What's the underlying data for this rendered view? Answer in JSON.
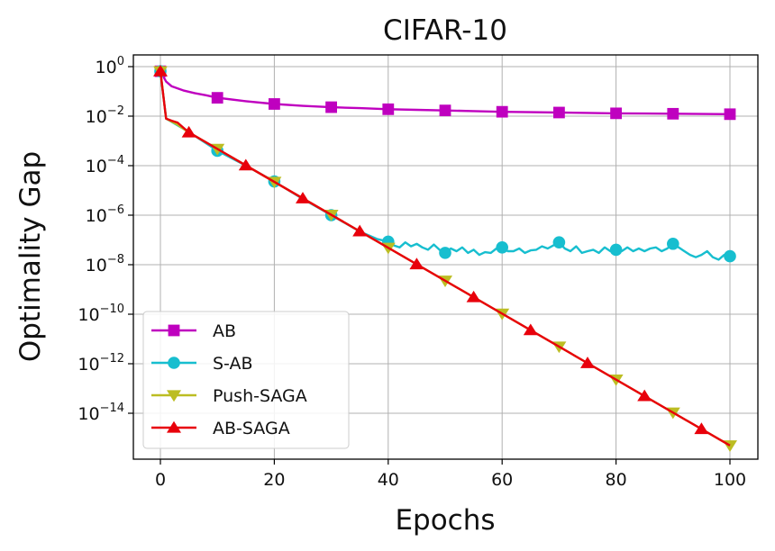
{
  "chart_data": {
    "type": "line",
    "title": "CIFAR-10",
    "xlabel": "Epochs",
    "ylabel": "Optimality Gap",
    "yscale": "log",
    "xlim": [
      -5,
      102
    ],
    "ylim": [
      1e-16,
      3
    ],
    "xticks": [
      0,
      20,
      40,
      60,
      80,
      100
    ],
    "xtick_labels": [
      "0",
      "20",
      "40",
      "60",
      "80",
      "100"
    ],
    "yticks": [
      {
        "base": "10",
        "exp": "0",
        "value": 1
      },
      {
        "base": "10",
        "exp": "−2",
        "value": 0.01
      },
      {
        "base": "10",
        "exp": "−4",
        "value": 0.0001
      },
      {
        "base": "10",
        "exp": "−6",
        "value": 1e-06
      },
      {
        "base": "10",
        "exp": "−8",
        "value": 1e-08
      },
      {
        "base": "10",
        "exp": "−10",
        "value": 1e-10
      },
      {
        "base": "10",
        "exp": "−12",
        "value": 1e-12
      },
      {
        "base": "10",
        "exp": "−14",
        "value": 1e-14
      }
    ],
    "grid": true,
    "legend_position": "bottom-left",
    "series": [
      {
        "name": "AB",
        "color": "#bf00bf",
        "marker": "square",
        "x": [
          0,
          1,
          2,
          4,
          6,
          8,
          10,
          15,
          20,
          25,
          30,
          35,
          40,
          45,
          50,
          55,
          60,
          65,
          70,
          75,
          80,
          85,
          90,
          95,
          100
        ],
        "y": [
          0.65,
          0.25,
          0.16,
          0.11,
          0.085,
          0.07,
          0.055,
          0.04,
          0.031,
          0.026,
          0.023,
          0.021,
          0.019,
          0.018,
          0.017,
          0.016,
          0.015,
          0.0145,
          0.014,
          0.0135,
          0.013,
          0.0128,
          0.0125,
          0.0122,
          0.012
        ],
        "marker_x": [
          0,
          10,
          20,
          30,
          40,
          50,
          60,
          70,
          80,
          90,
          100
        ]
      },
      {
        "name": "S-AB",
        "color": "#17becf",
        "marker": "circle",
        "x": [
          0,
          1,
          5,
          10,
          15,
          20,
          25,
          30,
          35,
          38,
          40,
          41,
          42,
          43,
          44,
          45,
          46,
          47,
          48,
          49,
          50,
          51,
          52,
          53,
          54,
          55,
          56,
          57,
          58,
          59,
          60,
          61,
          62,
          63,
          64,
          65,
          66,
          67,
          68,
          69,
          70,
          71,
          72,
          73,
          74,
          75,
          76,
          77,
          78,
          79,
          80,
          81,
          82,
          83,
          84,
          85,
          86,
          87,
          88,
          89,
          90,
          91,
          92,
          93,
          94,
          95,
          96,
          97,
          98,
          99,
          100
        ],
        "y": [
          0.65,
          0.008,
          0.0023,
          0.0004,
          0.0001,
          2.3e-05,
          4.5e-06,
          1e-06,
          2.2e-07,
          1.1e-07,
          8.5e-08,
          6e-08,
          5e-08,
          8e-08,
          5.5e-08,
          7e-08,
          5e-08,
          4e-08,
          6.5e-08,
          4e-08,
          3e-08,
          4.5e-08,
          3.5e-08,
          5e-08,
          3e-08,
          4e-08,
          2.5e-08,
          3.2e-08,
          3e-08,
          4.5e-08,
          5e-08,
          3.5e-08,
          3.5e-08,
          4.5e-08,
          3e-08,
          3.8e-08,
          4e-08,
          5.5e-08,
          4.5e-08,
          6e-08,
          8e-08,
          4.5e-08,
          3.5e-08,
          5.5e-08,
          3e-08,
          3.5e-08,
          4e-08,
          3e-08,
          5e-08,
          3.5e-08,
          4e-08,
          3.5e-08,
          5e-08,
          3.5e-08,
          4.5e-08,
          3.5e-08,
          4.5e-08,
          5e-08,
          3.5e-08,
          4.5e-08,
          7e-08,
          5e-08,
          3.5e-08,
          2.5e-08,
          2e-08,
          2.5e-08,
          3.5e-08,
          2e-08,
          1.6e-08,
          2.5e-08,
          2.2e-08
        ],
        "marker_x": [
          0,
          10,
          20,
          30,
          40,
          50,
          60,
          70,
          80,
          90,
          100
        ],
        "marker_y": [
          0.65,
          0.0004,
          2.3e-05,
          1e-06,
          8.5e-08,
          3e-08,
          5e-08,
          8e-08,
          4e-08,
          7e-08,
          2.2e-08
        ]
      },
      {
        "name": "Push-SAGA",
        "color": "#bcbd22",
        "marker": "triangle-down",
        "x": [
          0,
          1,
          2,
          3,
          5,
          100
        ],
        "y": [
          0.65,
          0.008,
          0.006,
          0.0045,
          0.0022,
          5e-16
        ],
        "marker_x": [
          0,
          10,
          20,
          30,
          40,
          50,
          60,
          70,
          80,
          90,
          100
        ]
      },
      {
        "name": "AB-SAGA",
        "color": "#e8000b",
        "marker": "triangle-up",
        "x": [
          0,
          1,
          2,
          3,
          5,
          100
        ],
        "y": [
          0.65,
          0.008,
          0.0065,
          0.0055,
          0.0022,
          5e-16
        ],
        "marker_x": [
          0,
          5,
          15,
          25,
          35,
          45,
          55,
          65,
          75,
          85,
          95
        ]
      }
    ]
  }
}
